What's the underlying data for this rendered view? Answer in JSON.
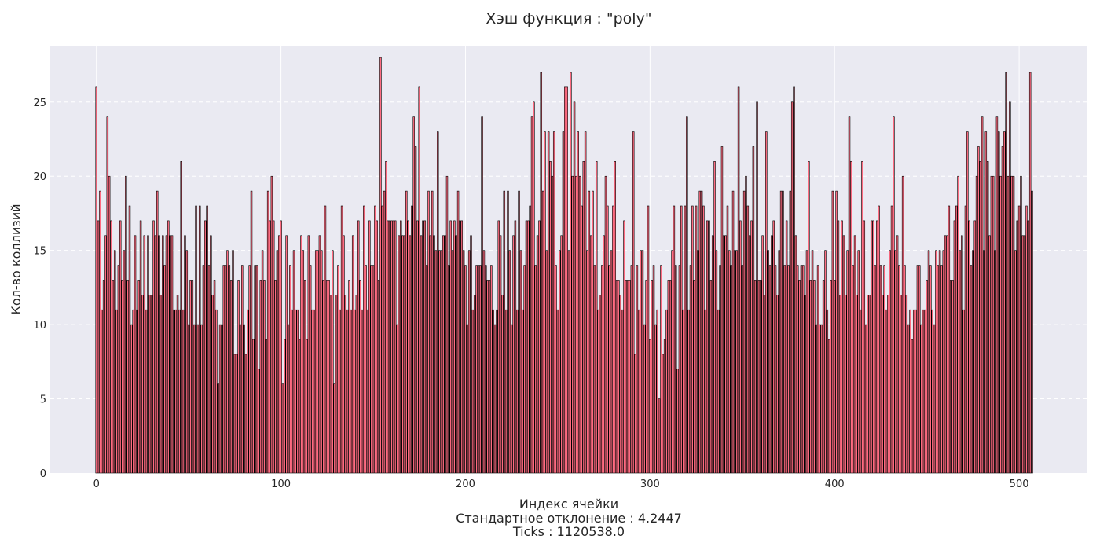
{
  "chart_data": {
    "type": "bar",
    "title": "Хэш функция : \"poly\"",
    "xlabel_lines": [
      "Индекс ячейки",
      "Стандартное отклонение : 4.2447",
      "Ticks : 1120538.0"
    ],
    "ylabel": "Кол-во коллизий",
    "xlim": [
      -25,
      537
    ],
    "ylim": [
      0,
      28.8
    ],
    "xticks": [
      0,
      100,
      200,
      300,
      400,
      500
    ],
    "yticks": [
      0,
      5,
      10,
      15,
      20,
      25
    ],
    "grid": true,
    "colors": {
      "bar_fill": "#ff6b81",
      "bar_edge": "#000000",
      "plot_bg": "#eaeaf2",
      "grid": "#ffffff"
    },
    "x_start": 0,
    "values": [
      26,
      17,
      19,
      11,
      13,
      16,
      24,
      20,
      17,
      13,
      15,
      11,
      14,
      17,
      13,
      15,
      20,
      13,
      18,
      10,
      11,
      16,
      11,
      13,
      17,
      12,
      16,
      11,
      16,
      12,
      12,
      17,
      16,
      19,
      16,
      12,
      16,
      14,
      16,
      17,
      16,
      16,
      11,
      11,
      12,
      11,
      21,
      11,
      16,
      15,
      10,
      13,
      13,
      10,
      18,
      10,
      18,
      10,
      14,
      17,
      18,
      14,
      16,
      12,
      13,
      11,
      6,
      10,
      10,
      14,
      14,
      15,
      14,
      13,
      15,
      8,
      8,
      13,
      10,
      14,
      10,
      8,
      11,
      14,
      19,
      9,
      14,
      14,
      7,
      13,
      15,
      13,
      9,
      19,
      17,
      20,
      17,
      13,
      15,
      16,
      17,
      6,
      9,
      16,
      10,
      14,
      11,
      15,
      11,
      11,
      9,
      16,
      15,
      13,
      9,
      16,
      14,
      11,
      11,
      15,
      15,
      16,
      15,
      13,
      18,
      13,
      13,
      12,
      15,
      6,
      12,
      14,
      11,
      18,
      16,
      12,
      11,
      13,
      11,
      16,
      11,
      12,
      17,
      13,
      11,
      18,
      14,
      11,
      17,
      14,
      14,
      18,
      17,
      13,
      28,
      18,
      19,
      21,
      17,
      17,
      17,
      17,
      17,
      10,
      16,
      17,
      16,
      16,
      19,
      17,
      16,
      18,
      24,
      22,
      17,
      26,
      16,
      17,
      17,
      14,
      19,
      16,
      19,
      16,
      15,
      23,
      15,
      15,
      16,
      16,
      20,
      14,
      17,
      15,
      17,
      16,
      19,
      17,
      17,
      15,
      14,
      10,
      15,
      16,
      11,
      12,
      14,
      14,
      14,
      24,
      15,
      14,
      13,
      13,
      14,
      11,
      10,
      11,
      17,
      16,
      12,
      19,
      11,
      19,
      15,
      10,
      16,
      17,
      11,
      19,
      15,
      11,
      14,
      17,
      17,
      18,
      24,
      25,
      14,
      16,
      17,
      27,
      19,
      23,
      15,
      23,
      21,
      20,
      23,
      14,
      11,
      15,
      16,
      23,
      26,
      26,
      15,
      27,
      20,
      25,
      20,
      23,
      20,
      18,
      21,
      23,
      15,
      19,
      16,
      19,
      14,
      21,
      11,
      12,
      14,
      16,
      20,
      18,
      14,
      15,
      18,
      21,
      13,
      13,
      12,
      11,
      17,
      13,
      13,
      13,
      14,
      23,
      8,
      14,
      11,
      15,
      15,
      10,
      13,
      18,
      9,
      13,
      14,
      10,
      11,
      5,
      14,
      8,
      9,
      11,
      13,
      13,
      15,
      18,
      14,
      7,
      14,
      18,
      11,
      18,
      24,
      11,
      14,
      18,
      13,
      18,
      15,
      19,
      19,
      18,
      11,
      17,
      17,
      13,
      16,
      21,
      15,
      11,
      14,
      22,
      16,
      16,
      18,
      15,
      14,
      19,
      15,
      15,
      26,
      17,
      14,
      19,
      20,
      18,
      16,
      17,
      22,
      13,
      25,
      13,
      13,
      16,
      12,
      23,
      15,
      14,
      16,
      17,
      14,
      12,
      15,
      19,
      19,
      14,
      17,
      14,
      19,
      25,
      26,
      16,
      14,
      13,
      14,
      14,
      12,
      15,
      21,
      13,
      15,
      13,
      10,
      14,
      10,
      10,
      13,
      15,
      11,
      9,
      13,
      19,
      13,
      19,
      17,
      12,
      17,
      16,
      12,
      15,
      24,
      21,
      14,
      16,
      12,
      15,
      11,
      21,
      17,
      10,
      12,
      12,
      17,
      17,
      14,
      17,
      18,
      14,
      12,
      14,
      11,
      12,
      15,
      18,
      24,
      15,
      16,
      14,
      12,
      20,
      14,
      12,
      10,
      11,
      9,
      11,
      11,
      14,
      14,
      10,
      11,
      11,
      13,
      15,
      14,
      11,
      10,
      15,
      14,
      15,
      14,
      15,
      16,
      16,
      18,
      13,
      13,
      17,
      18,
      20,
      15,
      16,
      11,
      18,
      23,
      17,
      14,
      15,
      17,
      20,
      22,
      21,
      24,
      15,
      23,
      21,
      16,
      20,
      20,
      15,
      24,
      23,
      20,
      22,
      23,
      27,
      20,
      25,
      20,
      20,
      15,
      17,
      18,
      20,
      16,
      16,
      18,
      17,
      27,
      19
    ]
  }
}
